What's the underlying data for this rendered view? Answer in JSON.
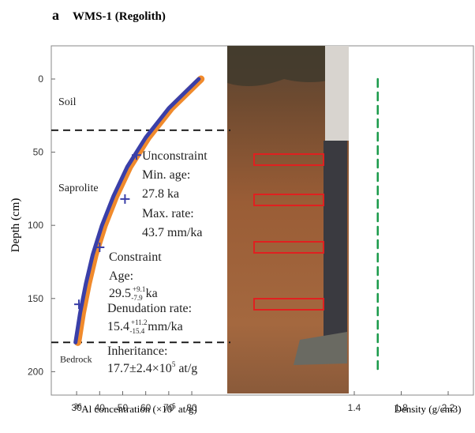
{
  "chart_data": {
    "type": "scatter",
    "panel_letter": "a",
    "title": "WMS-1 (Regolith)",
    "ylabel": "Depth (cm)",
    "xlabel": {
      "sup": "26",
      "text": "Al concentration (×10",
      "sup2": "5",
      "text2": " at/g)"
    },
    "x2label": "Density (g/cm3)",
    "xlim": [
      19,
      95.4
    ],
    "x2lim": [
      1.353,
      2.415
    ],
    "ylim": [
      -21.6,
      216
    ],
    "y_inverted": true,
    "xticks": [
      30,
      40,
      50,
      60,
      70,
      80
    ],
    "x2ticks": [
      1.4,
      1.8,
      2.2
    ],
    "yticks": [
      0,
      50,
      100,
      150,
      200
    ],
    "series": [
      {
        "color": "#f08a2c",
        "style": "line",
        "x": [
          84,
          71,
          61,
          53,
          47,
          42,
          38,
          35,
          32.5,
          30.5
        ],
        "values": [
          0,
          20,
          40,
          60,
          80,
          100,
          120,
          140,
          160,
          180
        ]
      },
      {
        "color": "#3a3fa8",
        "style": "line",
        "x": [
          83,
          70,
          60,
          52,
          46,
          41,
          37,
          34,
          31.5,
          29.5
        ],
        "values": [
          0,
          20,
          40,
          60,
          80,
          100,
          120,
          140,
          160,
          180
        ]
      },
      {
        "color": "#3a3fa8",
        "marker": "+",
        "x": [
          56,
          51,
          40,
          31
        ],
        "values": [
          52,
          82,
          115,
          154
        ]
      },
      {
        "color": "#1a9a4a",
        "style": "dash",
        "axis": "x2",
        "x": [
          1.6,
          1.6
        ],
        "values": [
          0,
          200
        ]
      }
    ],
    "boundaries": [
      35,
      180
    ],
    "layers": [
      {
        "label": "Soil",
        "depth": 15
      },
      {
        "label": "Saprolite",
        "depth": 74
      },
      {
        "label": "Bedrock",
        "depth": 191
      }
    ],
    "annotations": {
      "unconstraint": [
        "Unconstraint",
        "Min. age:",
        "27.8 ka",
        "Max. rate:",
        "43.7 mm/ka"
      ],
      "constraint": [
        "Constraint",
        "Age:"
      ],
      "age": {
        "text": "29.5",
        "sup": "+9.1",
        "sub": "-7.9",
        "unit": "ka"
      },
      "rate_label": "Denudation rate:",
      "rate": {
        "text": "15.4",
        "sup": "+11.2",
        "sub": "-15.4",
        "unit": "mm/ka"
      },
      "inheritance_label": "Inheritance:",
      "inheritance": {
        "text": "17.7±2.4×10",
        "sup": "5",
        "text2": " at/g"
      }
    }
  }
}
